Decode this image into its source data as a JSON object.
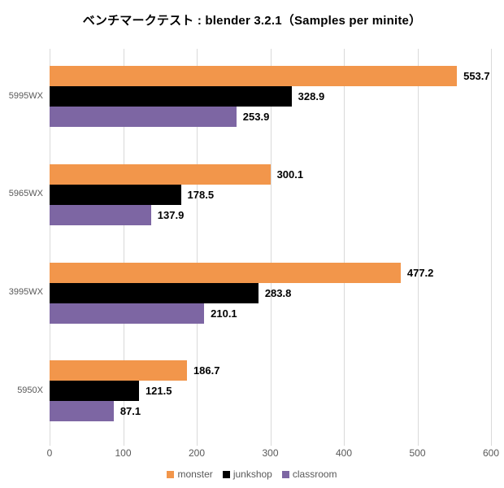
{
  "chart_data": {
    "type": "bar",
    "orientation": "horizontal",
    "title": "ベンチマークテスト : blender 3.2.1（Samples per minite）",
    "categories": [
      "5995WX",
      "5965WX",
      "3995WX",
      "5950X"
    ],
    "series": [
      {
        "name": "monster",
        "color": "#F2964B",
        "values": [
          553.7,
          300.1,
          477.2,
          186.7
        ]
      },
      {
        "name": "junkshop",
        "color": "#000000",
        "values": [
          328.9,
          178.5,
          283.8,
          121.5
        ]
      },
      {
        "name": "classroom",
        "color": "#7D66A3",
        "values": [
          253.9,
          137.9,
          210.1,
          87.1
        ]
      }
    ],
    "xlim": [
      0,
      600
    ],
    "x_ticks": [
      "0",
      "100",
      "200",
      "300",
      "400",
      "500",
      "600"
    ],
    "grid": true,
    "legend_position": "bottom"
  },
  "style_colors": {
    "grid": "#D9D9D9",
    "axis_text": "#595959",
    "value_text": "#000000",
    "title_text": "#000000",
    "background": "#FFFFFF"
  }
}
